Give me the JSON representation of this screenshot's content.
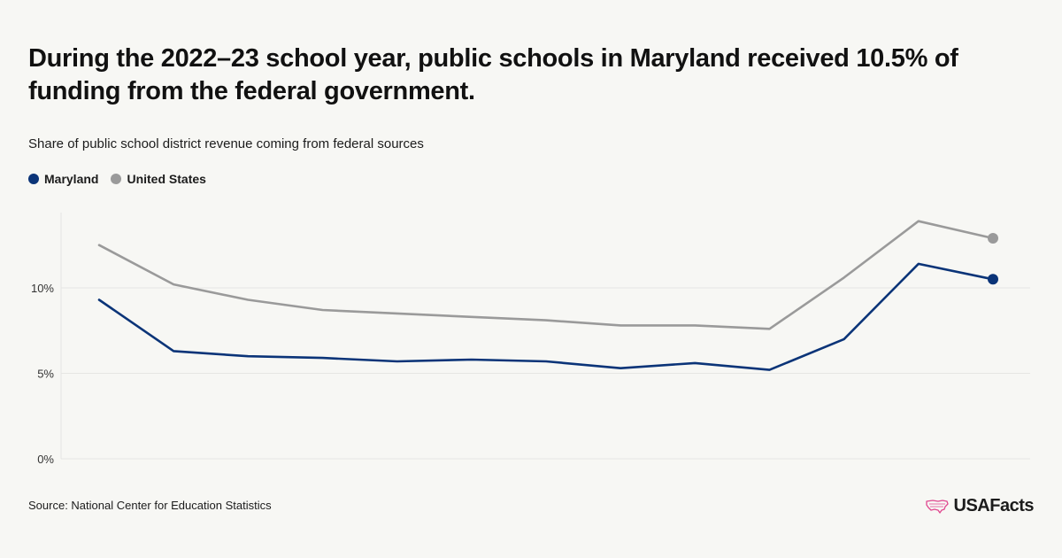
{
  "title": "During the 2022–23 school year, public schools in Maryland received 10.5% of funding from the federal government.",
  "subtitle": "Share of public school district revenue coming from federal sources",
  "source": "Source: National Center for Education Statistics",
  "brand": "USAFacts",
  "colors": {
    "maryland": "#0b3478",
    "united_states": "#9a9a9a",
    "background": "#f7f7f4",
    "grid": "#e6e6e3",
    "brand_accent": "#e0478f"
  },
  "chart_data": {
    "type": "line",
    "title": "During the 2022–23 school year, public schools in Maryland received 10.5% of funding from the federal government.",
    "subtitle": "Share of public school district revenue coming from federal sources",
    "xlabel": "",
    "ylabel": "",
    "ylim": [
      0,
      14.4
    ],
    "y_ticks": [
      {
        "value": 0,
        "label": "0%"
      },
      {
        "value": 5,
        "label": "5%"
      },
      {
        "value": 10,
        "label": "10%"
      }
    ],
    "grid": true,
    "legend_position": "top-left",
    "series": [
      {
        "name": "Maryland",
        "color": "#0b3478",
        "values": [
          9.3,
          6.3,
          6.0,
          5.9,
          5.7,
          5.8,
          5.7,
          5.3,
          5.6,
          5.2,
          7.0,
          11.4,
          10.5
        ]
      },
      {
        "name": "United States",
        "color": "#9a9a9a",
        "values": [
          12.5,
          10.2,
          9.3,
          8.7,
          8.5,
          8.3,
          8.1,
          7.8,
          7.8,
          7.6,
          10.6,
          13.9,
          12.9
        ]
      }
    ]
  }
}
